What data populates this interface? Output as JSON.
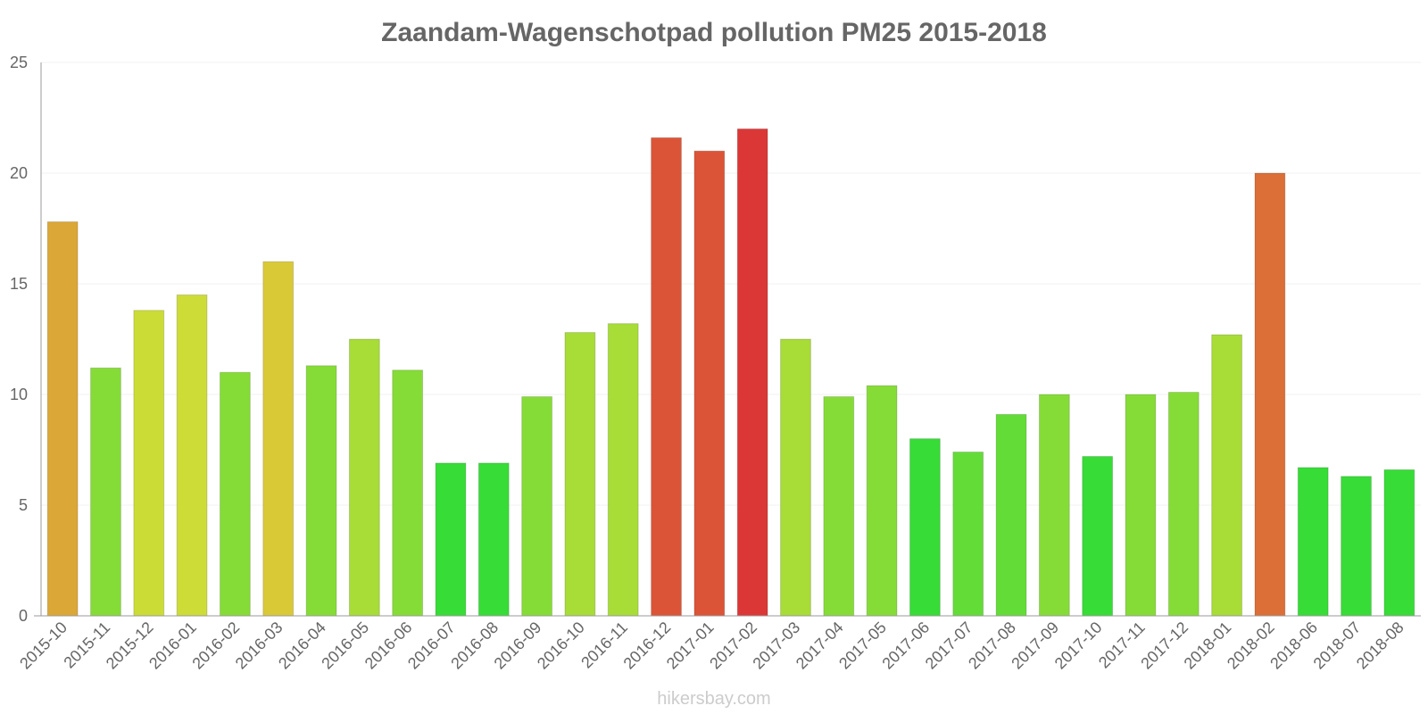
{
  "chart_data": {
    "type": "bar",
    "title": "Zaandam-Wagenschotpad pollution PM25 2015-2018",
    "xlabel": "",
    "ylabel": "",
    "ylim": [
      0,
      25
    ],
    "yticks": [
      0,
      5,
      10,
      15,
      20,
      25
    ],
    "grid": true,
    "categories": [
      "2015-10",
      "2015-11",
      "2015-12",
      "2016-01",
      "2016-02",
      "2016-03",
      "2016-04",
      "2016-05",
      "2016-06",
      "2016-07",
      "2016-08",
      "2016-09",
      "2016-10",
      "2016-11",
      "2016-12",
      "2017-01",
      "2017-02",
      "2017-03",
      "2017-04",
      "2017-05",
      "2017-06",
      "2017-07",
      "2017-08",
      "2017-09",
      "2017-10",
      "2017-11",
      "2017-12",
      "2018-01",
      "2018-02",
      "2018-06",
      "2018-07",
      "2018-08"
    ],
    "values": [
      17.8,
      11.2,
      13.8,
      14.5,
      11.0,
      16.0,
      11.3,
      12.5,
      11.1,
      6.9,
      6.9,
      9.9,
      12.8,
      13.2,
      21.6,
      21.0,
      22.0,
      12.5,
      9.9,
      10.4,
      8.0,
      7.4,
      9.1,
      10.0,
      7.2,
      10.0,
      10.1,
      12.7,
      20.0,
      6.7,
      6.3,
      6.6
    ],
    "colors": [
      "#dba737",
      "#86dc37",
      "#cbdc37",
      "#cddc37",
      "#86dc37",
      "#dac937",
      "#86dc37",
      "#a8dc37",
      "#86dc37",
      "#37dc37",
      "#37dc37",
      "#86dc37",
      "#a8dc37",
      "#a8dc37",
      "#dc5437",
      "#dc5437",
      "#dc3737",
      "#a8dc37",
      "#86dc37",
      "#86dc37",
      "#37dc37",
      "#64dc37",
      "#64dc37",
      "#86dc37",
      "#37dc37",
      "#86dc37",
      "#86dc37",
      "#a8dc37",
      "#dc6e37",
      "#37dc37",
      "#37dc37",
      "#37dc37"
    ]
  },
  "footer": {
    "credit": "hikersbay.com"
  }
}
